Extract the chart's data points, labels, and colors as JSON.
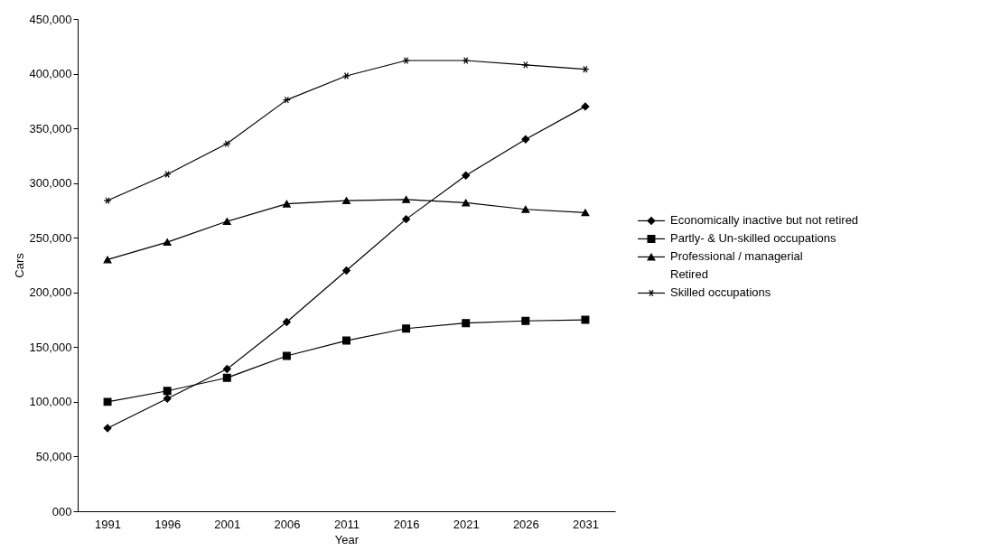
{
  "chart_data": {
    "type": "line",
    "xlabel": "Year",
    "ylabel": "Cars",
    "categories": [
      "1991",
      "1996",
      "2001",
      "2006",
      "2011",
      "2016",
      "2021",
      "2026",
      "2031"
    ],
    "series": [
      {
        "name": "Economically inactive but not retired",
        "color": "#000000",
        "marker": "diamond",
        "values": [
          76000,
          103000,
          130000,
          173000,
          220000,
          267000,
          307000,
          340000,
          370000
        ]
      },
      {
        "name": "Partly- & Un-skilled occupations",
        "color": "#000000",
        "marker": "square",
        "values": [
          100000,
          110000,
          122000,
          142000,
          156000,
          167000,
          172000,
          174000,
          175000
        ]
      },
      {
        "name": "Professional / managerial",
        "color": "#000000",
        "marker": "triangle",
        "values": [
          230000,
          246000,
          265000,
          281000,
          284000,
          285000,
          282000,
          276000,
          273000
        ]
      },
      {
        "name": "Retired",
        "marker": "none",
        "values": [
          null,
          null,
          null,
          null,
          null,
          null,
          null,
          null,
          null
        ]
      },
      {
        "name": "Skilled occupations",
        "color": "#000000",
        "marker": "cross",
        "values": [
          284000,
          308000,
          336000,
          376000,
          398000,
          412000,
          412000,
          408000,
          404000
        ]
      }
    ],
    "ylim": [
      0,
      450000
    ],
    "yticks": [
      {
        "value": 0,
        "label": "000"
      },
      {
        "value": 50000,
        "label": "50,000"
      },
      {
        "value": 100000,
        "label": "100,000"
      },
      {
        "value": 150000,
        "label": "150,000"
      },
      {
        "value": 200000,
        "label": "200,000"
      },
      {
        "value": 250000,
        "label": "250,000"
      },
      {
        "value": 300000,
        "label": "300,000"
      },
      {
        "value": 350000,
        "label": "350,000"
      },
      {
        "value": 400000,
        "label": "400,000"
      },
      {
        "value": 450000,
        "label": "450,000"
      }
    ],
    "grid": false,
    "legend": "right",
    "line_style": "solid"
  }
}
